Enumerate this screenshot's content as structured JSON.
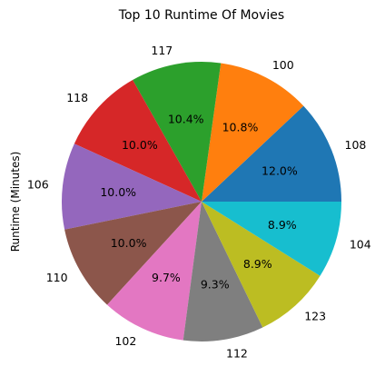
{
  "chart_data": {
    "type": "pie",
    "title": "Top 10 Runtime Of Movies",
    "ylabel": "Runtime (Minutes)",
    "categories": [
      "108",
      "100",
      "117",
      "118",
      "106",
      "110",
      "102",
      "112",
      "123",
      "104"
    ],
    "percent_labels": [
      "12.0%",
      "10.8%",
      "10.4%",
      "10.0%",
      "10.0%",
      "10.0%",
      "9.7%",
      "9.3%",
      "8.9%",
      "8.9%"
    ],
    "values": [
      12.0,
      10.8,
      10.4,
      10.0,
      10.0,
      10.0,
      9.7,
      9.3,
      8.9,
      8.9
    ],
    "colors": [
      "#1f77b4",
      "#ff7f0e",
      "#2ca02c",
      "#d62728",
      "#9467bd",
      "#8c564b",
      "#e377c2",
      "#7f7f7f",
      "#bcbd22",
      "#17becf"
    ],
    "start_angle_deg": 0,
    "direction": "counterclockwise"
  }
}
